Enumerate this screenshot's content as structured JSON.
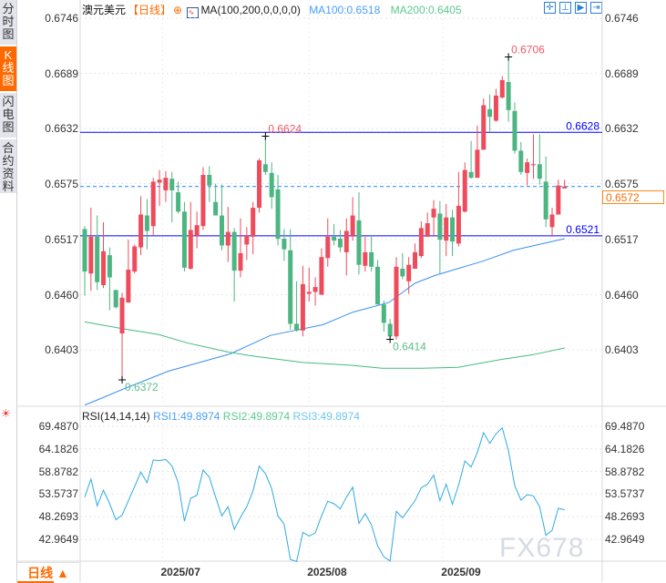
{
  "sidebar": {
    "items": [
      {
        "label": "分时图",
        "active": false
      },
      {
        "label": "K线图",
        "active": true
      },
      {
        "label": "闪电图",
        "active": false
      },
      {
        "label": "合约资料",
        "active": false
      }
    ]
  },
  "header": {
    "symbol": "澳元美元",
    "period": "【日线】",
    "ma_label": "MA(100,200,0,0,0,0)",
    "ma100": "MA100:0.6518",
    "ma200": "MA200:0.6405",
    "toolbar_icons": [
      "crosshair-icon",
      "measure-icon",
      "play-icon",
      "go-latest-icon"
    ]
  },
  "rsi_header": {
    "label": "RSI(14,14,14)",
    "rsi1": "RSI1:49.8974",
    "rsi2": "RSI2:49.8974",
    "rsi3": "RSI3:49.8974"
  },
  "period_button": "日线 ▲",
  "watermark": "FX678",
  "colors": {
    "up": "#ee4b5c",
    "down": "#4db582",
    "ma100": "#3a8ff0",
    "ma200": "#44bb7f",
    "rsi": "#2eaae2",
    "hline": "#0000ff",
    "last": "#ff6a00"
  },
  "chart_data": [
    {
      "type": "candlestick",
      "title": "",
      "price_axis": {
        "ticks": [
          "0.6746",
          "0.6689",
          "0.6632",
          "0.6575",
          "0.6517",
          "0.6460",
          "0.6403"
        ],
        "range": [
          0.634,
          0.6746
        ]
      },
      "x_axis": {
        "ticks": [
          {
            "label": "2025/07",
            "bar": 13.5
          },
          {
            "label": "2025/08",
            "bar": 37
          },
          {
            "label": "2025/09",
            "bar": 58.5
          }
        ]
      },
      "up_color": "red",
      "down_color": "green",
      "ohlc": [
        [
          0.6528,
          0.6531,
          0.6459,
          0.6484
        ],
        [
          0.6482,
          0.655,
          0.6464,
          0.652
        ],
        [
          0.652,
          0.6542,
          0.6465,
          0.6473
        ],
        [
          0.647,
          0.6535,
          0.6467,
          0.6505
        ],
        [
          0.6501,
          0.6509,
          0.6444,
          0.6478
        ],
        [
          0.6465,
          0.6465,
          0.6446,
          0.6447
        ],
        [
          0.642,
          0.6462,
          0.6372,
          0.6457
        ],
        [
          0.6452,
          0.6517,
          0.6452,
          0.6486
        ],
        [
          0.6484,
          0.6512,
          0.6482,
          0.651
        ],
        [
          0.6509,
          0.6562,
          0.6501,
          0.6543
        ],
        [
          0.6542,
          0.6559,
          0.6507,
          0.6526
        ],
        [
          0.6531,
          0.6581,
          0.6521,
          0.6577
        ],
        [
          0.6576,
          0.6589,
          0.6552,
          0.6579
        ],
        [
          0.6568,
          0.6588,
          0.6556,
          0.6581
        ],
        [
          0.658,
          0.6587,
          0.6535,
          0.6568
        ],
        [
          0.6566,
          0.6577,
          0.6544,
          0.6546
        ],
        [
          0.6546,
          0.6556,
          0.6484,
          0.6488
        ],
        [
          0.6487,
          0.6556,
          0.6486,
          0.6527
        ],
        [
          0.6521,
          0.6546,
          0.6508,
          0.6532
        ],
        [
          0.6531,
          0.6592,
          0.6527,
          0.6584
        ],
        [
          0.6584,
          0.6593,
          0.6556,
          0.6573
        ],
        [
          0.6556,
          0.6575,
          0.6542,
          0.6542
        ],
        [
          0.6542,
          0.6574,
          0.6506,
          0.6511
        ],
        [
          0.6511,
          0.6551,
          0.6494,
          0.6525
        ],
        [
          0.6525,
          0.6529,
          0.6453,
          0.6485
        ],
        [
          0.6485,
          0.6539,
          0.6478,
          0.6503
        ],
        [
          0.6512,
          0.653,
          0.6496,
          0.6521
        ],
        [
          0.652,
          0.6556,
          0.6502,
          0.655
        ],
        [
          0.655,
          0.6601,
          0.6545,
          0.6599
        ],
        [
          0.6595,
          0.6624,
          0.6584,
          0.6587
        ],
        [
          0.6586,
          0.6597,
          0.6549,
          0.6561
        ],
        [
          0.6569,
          0.6584,
          0.6511,
          0.6518
        ],
        [
          0.6518,
          0.6528,
          0.6495,
          0.6507
        ],
        [
          0.6506,
          0.6528,
          0.6424,
          0.643
        ],
        [
          0.643,
          0.6474,
          0.6422,
          0.6423
        ],
        [
          0.6423,
          0.649,
          0.6417,
          0.6471
        ],
        [
          0.6461,
          0.6488,
          0.6453,
          0.6463
        ],
        [
          0.6463,
          0.6478,
          0.6449,
          0.6468
        ],
        [
          0.646,
          0.6508,
          0.646,
          0.6499
        ],
        [
          0.6498,
          0.6539,
          0.6489,
          0.652
        ],
        [
          0.652,
          0.6533,
          0.6511,
          0.6516
        ],
        [
          0.6518,
          0.6527,
          0.6504,
          0.6509
        ],
        [
          0.6504,
          0.6539,
          0.648,
          0.6526
        ],
        [
          0.6521,
          0.6561,
          0.6516,
          0.6542
        ],
        [
          0.6537,
          0.6566,
          0.6481,
          0.6491
        ],
        [
          0.649,
          0.652,
          0.6484,
          0.6504
        ],
        [
          0.6504,
          0.6522,
          0.6484,
          0.6489
        ],
        [
          0.6489,
          0.6496,
          0.645,
          0.645
        ],
        [
          0.645,
          0.6454,
          0.6422,
          0.6431
        ],
        [
          0.643,
          0.6435,
          0.6414,
          0.6417
        ],
        [
          0.6417,
          0.6499,
          0.6414,
          0.6489
        ],
        [
          0.6487,
          0.6503,
          0.6476,
          0.6479
        ],
        [
          0.6474,
          0.6499,
          0.6461,
          0.6491
        ],
        [
          0.6487,
          0.6513,
          0.6487,
          0.6504
        ],
        [
          0.65,
          0.6536,
          0.6498,
          0.6529
        ],
        [
          0.652,
          0.6545,
          0.652,
          0.6534
        ],
        [
          0.654,
          0.6558,
          0.652,
          0.6549
        ],
        [
          0.6544,
          0.6557,
          0.6482,
          0.6517
        ],
        [
          0.6516,
          0.6554,
          0.65,
          0.654
        ],
        [
          0.654,
          0.6548,
          0.65,
          0.6515
        ],
        [
          0.6513,
          0.6587,
          0.651,
          0.6552
        ],
        [
          0.6546,
          0.6597,
          0.6545,
          0.6589
        ],
        [
          0.6587,
          0.6619,
          0.658,
          0.6581
        ],
        [
          0.6581,
          0.6635,
          0.6581,
          0.661
        ],
        [
          0.661,
          0.6663,
          0.661,
          0.6656
        ],
        [
          0.6652,
          0.6667,
          0.6629,
          0.6644
        ],
        [
          0.664,
          0.6673,
          0.6639,
          0.6666
        ],
        [
          0.6664,
          0.6686,
          0.6663,
          0.6682
        ],
        [
          0.668,
          0.6706,
          0.6639,
          0.6651
        ],
        [
          0.665,
          0.6659,
          0.6606,
          0.6609
        ],
        [
          0.6609,
          0.6618,
          0.6584,
          0.6587
        ],
        [
          0.6586,
          0.6601,
          0.6573,
          0.6597
        ],
        [
          0.6594,
          0.6626,
          0.658,
          0.6595
        ],
        [
          0.6595,
          0.6626,
          0.6574,
          0.658
        ],
        [
          0.6577,
          0.6603,
          0.653,
          0.6538
        ],
        [
          0.653,
          0.655,
          0.652,
          0.6543
        ],
        [
          0.6543,
          0.6579,
          0.6543,
          0.6573
        ],
        [
          0.657,
          0.6579,
          0.657,
          0.6572
        ]
      ],
      "series": [
        {
          "name": "MA100",
          "points": [
            [
              1,
              0.6346
            ],
            [
              3.3,
              0.6352
            ],
            [
              7,
              0.6362
            ],
            [
              14.4,
              0.6381
            ],
            [
              24.4,
              0.6399
            ],
            [
              30.8,
              0.6418
            ],
            [
              39.2,
              0.6429
            ],
            [
              44,
              0.6442
            ],
            [
              49.8,
              0.6452
            ],
            [
              54,
              0.6472
            ],
            [
              57.2,
              0.648
            ],
            [
              65,
              0.6495
            ],
            [
              69.8,
              0.6506
            ],
            [
              78,
              0.6518
            ]
          ]
        },
        {
          "name": "MA200",
          "points": [
            [
              1,
              0.6432
            ],
            [
              7,
              0.6425
            ],
            [
              12.8,
              0.6419
            ],
            [
              17.6,
              0.641
            ],
            [
              23.9,
              0.6401
            ],
            [
              27.6,
              0.6397
            ],
            [
              36,
              0.639
            ],
            [
              44,
              0.6387
            ],
            [
              48.7,
              0.6384
            ],
            [
              55.1,
              0.6384
            ],
            [
              60.9,
              0.6385
            ],
            [
              67.7,
              0.6393
            ],
            [
              72.9,
              0.6398
            ],
            [
              78,
              0.6405
            ]
          ]
        }
      ],
      "horizontal_lines": [
        {
          "value": 0.6628,
          "label": "0.6628",
          "style": "solid"
        },
        {
          "value": 0.6521,
          "label": "0.6521",
          "style": "solid"
        },
        {
          "value": 0.6572,
          "label": "0.6572",
          "style": "dashed",
          "last_price": true
        }
      ],
      "annotations": [
        {
          "label": "0.6706",
          "bar": 69,
          "value": 0.6706,
          "kind": "high"
        },
        {
          "label": "0.6624",
          "bar": 30,
          "value": 0.6624,
          "kind": "high"
        },
        {
          "label": "0.6414",
          "bar": 50,
          "value": 0.6414,
          "kind": "low"
        },
        {
          "label": "0.6372",
          "bar": 7,
          "value": 0.6372,
          "kind": "low"
        }
      ]
    },
    {
      "type": "line",
      "title": "RSI(14,14,14)",
      "y_axis": {
        "ticks": [
          "69.4870",
          "64.1826",
          "58.8782",
          "53.5737",
          "48.2693",
          "42.9649"
        ],
        "range": [
          36.5,
          70.5
        ]
      },
      "series": [
        {
          "name": "RSI1",
          "values": [
            52.87,
            57.11,
            50.82,
            54.49,
            51.31,
            47.56,
            48.62,
            52.02,
            55.34,
            58.74,
            56.26,
            61.57,
            61.43,
            61.71,
            60.15,
            56.26,
            47.21,
            52.59,
            53.29,
            59.23,
            57.54,
            52.87,
            48.48,
            50.6,
            45.3,
            48.13,
            50.6,
            54.28,
            60.15,
            58.38,
            54.85,
            48.48,
            46.5,
            38.23,
            37.73,
            44.59,
            43.74,
            44.45,
            48.48,
            51.88,
            51.31,
            50.11,
            52.87,
            55.2,
            46.71,
            48.98,
            46.36,
            41.41,
            38.86,
            37.87,
            49.55,
            47.99,
            50.04,
            52.02,
            55.06,
            55.91,
            58.03,
            52.02,
            55.91,
            51.17,
            55.7,
            61.35,
            59.94,
            63.33,
            68.0,
            65.46,
            67.72,
            69.13,
            63.69,
            55.56,
            52.16,
            53.44,
            53.15,
            50.6,
            43.89,
            45.09,
            50.25,
            49.9
          ]
        }
      ]
    }
  ]
}
